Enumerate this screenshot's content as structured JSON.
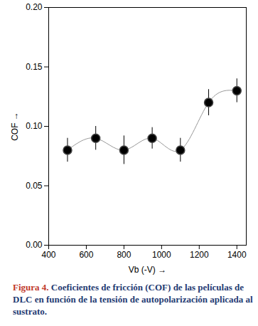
{
  "chart_data": {
    "type": "scatter",
    "xlabel": "Vb (-V)",
    "ylabel": "COF",
    "caption": "Figura 4. Coeficientes de fricción (COF) de las películas de DLC en función de la tensión de autopolarización aplicada al sustrato.",
    "x": [
      500,
      650,
      800,
      950,
      1100,
      1250,
      1400
    ],
    "values": [
      0.08,
      0.09,
      0.08,
      0.09,
      0.08,
      0.12,
      0.13
    ],
    "errors": [
      0.01,
      0.01,
      0.012,
      0.009,
      0.01,
      0.011,
      0.01
    ],
    "xlim": [
      400,
      1450
    ],
    "ylim": [
      0,
      0.2
    ],
    "xticks": [
      400,
      600,
      800,
      1000,
      1200,
      1400
    ],
    "yticks": [
      {
        "value": 0,
        "label": "0.00"
      },
      {
        "value": 0.05,
        "label": "0.05"
      },
      {
        "value": 0.1,
        "label": "0.10"
      },
      {
        "value": 0.15,
        "label": "0.15"
      },
      {
        "value": 0.2,
        "label": "0.20"
      }
    ],
    "color": "#000000",
    "marker": "circle",
    "line_style": "solid",
    "grid": false
  }
}
